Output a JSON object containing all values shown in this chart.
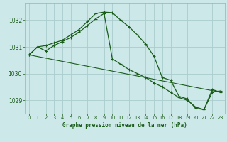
{
  "title": "Graphe pression niveau de la mer (hPa)",
  "background_color": "#cce8e8",
  "grid_color": "#aacccc",
  "line_color": "#1a5c1a",
  "marker_color": "#1a5c1a",
  "xlim": [
    -0.5,
    23.5
  ],
  "ylim": [
    1028.5,
    1032.65
  ],
  "yticks": [
    1029,
    1030,
    1031,
    1032
  ],
  "xticks": [
    0,
    1,
    2,
    3,
    4,
    5,
    6,
    7,
    8,
    9,
    10,
    11,
    12,
    13,
    14,
    15,
    16,
    17,
    18,
    19,
    20,
    21,
    22,
    23
  ],
  "series1_x": [
    0,
    1,
    2,
    3,
    4,
    5,
    6,
    7,
    8,
    9,
    10,
    11,
    12,
    13,
    14,
    15,
    16,
    17,
    18,
    19,
    20,
    21,
    22,
    23
  ],
  "series1_y": [
    1030.7,
    1031.0,
    1031.05,
    1031.15,
    1031.25,
    1031.45,
    1031.65,
    1031.95,
    1032.25,
    1032.3,
    1032.28,
    1032.0,
    1031.75,
    1031.45,
    1031.1,
    1030.65,
    1029.85,
    1029.75,
    1029.15,
    1029.05,
    1028.7,
    1028.65,
    1029.4,
    1029.3
  ],
  "series2_x": [
    0,
    1,
    2,
    3,
    4,
    5,
    6,
    7,
    8,
    9,
    10,
    11,
    12,
    13,
    14,
    15,
    16,
    17,
    18,
    19,
    20,
    21,
    22,
    23
  ],
  "series2_y": [
    1030.7,
    1031.0,
    1030.85,
    1031.05,
    1031.2,
    1031.35,
    1031.55,
    1031.8,
    1032.05,
    1032.25,
    1030.55,
    1030.35,
    1030.15,
    1030.0,
    1029.85,
    1029.65,
    1029.5,
    1029.3,
    1029.1,
    1029.0,
    1028.75,
    1028.65,
    1029.3,
    1029.35
  ],
  "series3_x": [
    0,
    23
  ],
  "series3_y": [
    1030.7,
    1029.3
  ]
}
